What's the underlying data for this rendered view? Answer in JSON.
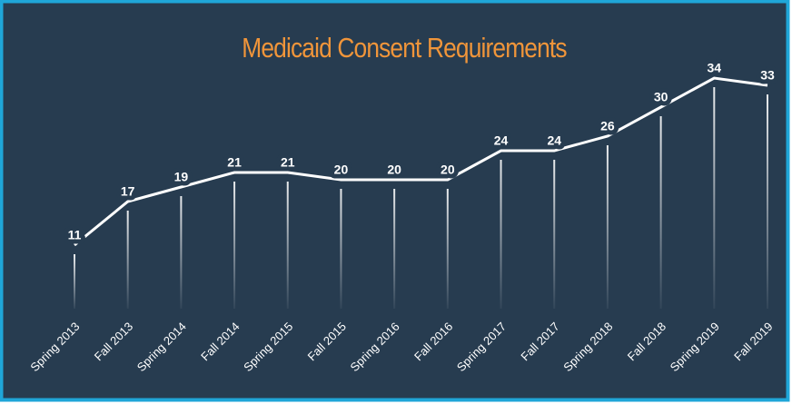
{
  "chart_data": {
    "type": "line",
    "title": "Medicaid Consent Requirements",
    "categories": [
      "Spring 2013",
      "Fall 2013",
      "Spring 2014",
      "Fall 2014",
      "Spring 2015",
      "Fall 2015",
      "Spring 2016",
      "Fall 2016",
      "Spring 2017",
      "Fall 2017",
      "Spring 2018",
      "Fall 2018",
      "Spring 2019",
      "Fall 2019"
    ],
    "values": [
      11,
      17,
      19,
      21,
      21,
      20,
      20,
      20,
      24,
      24,
      26,
      30,
      34,
      33
    ],
    "color": "#ffffff"
  }
}
